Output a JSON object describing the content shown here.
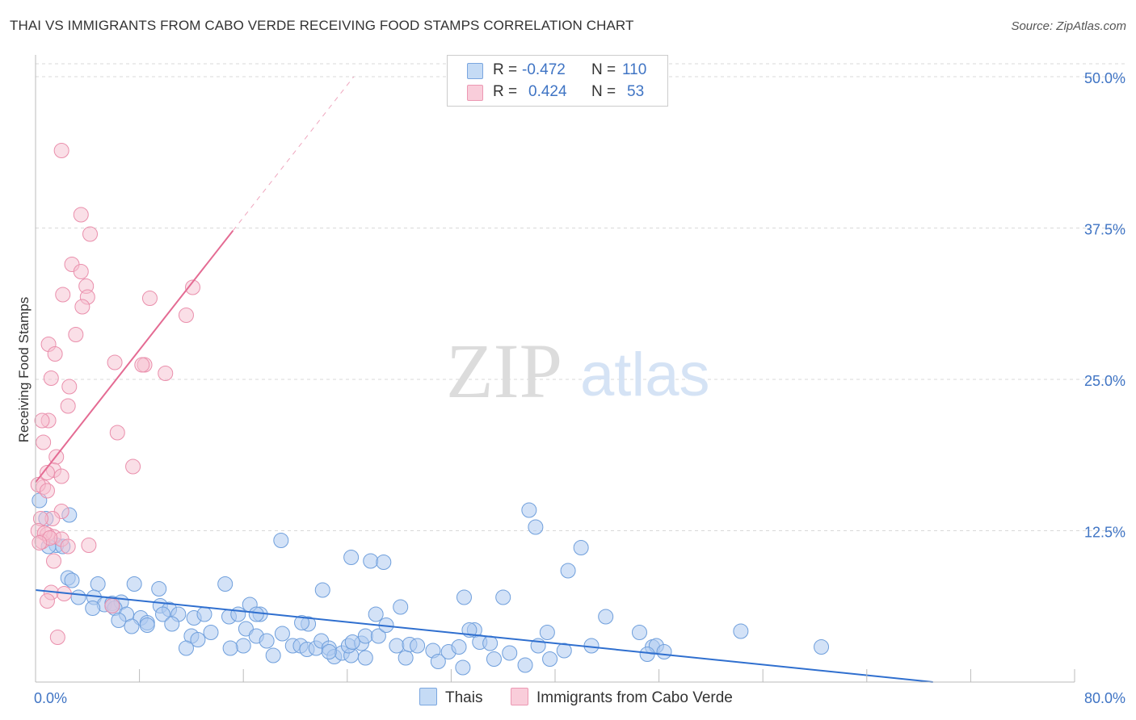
{
  "title": "THAI VS IMMIGRANTS FROM CABO VERDE RECEIVING FOOD STAMPS CORRELATION CHART",
  "source": "Source: ZipAtlas.com",
  "watermark": {
    "zip": "ZIP",
    "atlas": "atlas"
  },
  "legend": {
    "r_label": "R =",
    "n_label": "N =",
    "series1": {
      "r": "-0.472",
      "n": "110"
    },
    "series2": {
      "r": "0.424",
      "n": "53"
    }
  },
  "colors": {
    "blue_fill": "#aecbf0",
    "blue_stroke": "#6f9fdc",
    "blue_line": "#2f6fcf",
    "pink_fill": "#f6bfd0",
    "pink_stroke": "#ea8fac",
    "pink_line": "#e46b93",
    "grid": "#d9d9d9",
    "tick_text": "#3f74c4"
  },
  "chart_data": {
    "type": "scatter",
    "title": "THAI VS IMMIGRANTS FROM CABO VERDE RECEIVING FOOD STAMPS CORRELATION CHART",
    "xlabel": "",
    "ylabel": "Receiving Food Stamps",
    "xlim": [
      0,
      80
    ],
    "ylim": [
      0,
      50
    ],
    "x_tick_labels": [
      "0.0%",
      "80.0%"
    ],
    "y_tick_labels": [
      "12.5%",
      "25.0%",
      "37.5%",
      "50.0%"
    ],
    "y_tick_values": [
      12.5,
      25.0,
      37.5,
      50.0
    ],
    "grid": true,
    "series": [
      {
        "name": "Thais",
        "r": -0.472,
        "n": 110,
        "trend": {
          "x": [
            0,
            80
          ],
          "y": [
            7.6,
            -1.2
          ]
        },
        "points": [
          [
            0.3,
            15.0
          ],
          [
            2.6,
            13.8
          ],
          [
            0.8,
            13.5
          ],
          [
            1.6,
            11.3
          ],
          [
            1.0,
            11.2
          ],
          [
            2.1,
            11.2
          ],
          [
            2.5,
            8.6
          ],
          [
            2.8,
            8.4
          ],
          [
            4.8,
            8.1
          ],
          [
            3.3,
            7.0
          ],
          [
            4.5,
            7.0
          ],
          [
            5.3,
            6.4
          ],
          [
            5.9,
            6.5
          ],
          [
            6.6,
            6.6
          ],
          [
            4.4,
            6.1
          ],
          [
            6.1,
            6.1
          ],
          [
            7.0,
            5.6
          ],
          [
            6.4,
            5.1
          ],
          [
            8.1,
            5.3
          ],
          [
            8.6,
            4.9
          ],
          [
            7.4,
            4.6
          ],
          [
            8.6,
            4.7
          ],
          [
            9.6,
            6.3
          ],
          [
            10.3,
            6.0
          ],
          [
            9.8,
            5.6
          ],
          [
            11.0,
            5.6
          ],
          [
            10.5,
            4.8
          ],
          [
            12.2,
            5.3
          ],
          [
            13.0,
            5.6
          ],
          [
            12.0,
            3.8
          ],
          [
            13.5,
            4.1
          ],
          [
            12.5,
            3.5
          ],
          [
            11.6,
            2.8
          ],
          [
            14.9,
            5.4
          ],
          [
            15.6,
            5.6
          ],
          [
            16.5,
            6.4
          ],
          [
            17.3,
            5.6
          ],
          [
            17.0,
            5.6
          ],
          [
            16.2,
            4.4
          ],
          [
            17.0,
            3.8
          ],
          [
            17.8,
            3.4
          ],
          [
            18.3,
            2.2
          ],
          [
            16.0,
            3.0
          ],
          [
            15.0,
            2.8
          ],
          [
            19.0,
            4.0
          ],
          [
            19.8,
            3.0
          ],
          [
            20.4,
            3.0
          ],
          [
            20.9,
            2.7
          ],
          [
            21.6,
            2.8
          ],
          [
            22.0,
            3.4
          ],
          [
            21.0,
            4.8
          ],
          [
            20.5,
            4.9
          ],
          [
            22.6,
            2.8
          ],
          [
            23.0,
            2.1
          ],
          [
            23.6,
            2.4
          ],
          [
            24.3,
            2.2
          ],
          [
            24.1,
            3.0
          ],
          [
            25.1,
            3.2
          ],
          [
            25.4,
            3.8
          ],
          [
            26.4,
            3.8
          ],
          [
            25.4,
            2.0
          ],
          [
            27.0,
            4.7
          ],
          [
            26.2,
            5.6
          ],
          [
            27.8,
            3.0
          ],
          [
            28.5,
            2.0
          ],
          [
            28.8,
            3.1
          ],
          [
            29.4,
            3.0
          ],
          [
            30.6,
            2.6
          ],
          [
            31.0,
            1.7
          ],
          [
            31.8,
            2.5
          ],
          [
            32.6,
            2.9
          ],
          [
            32.9,
            1.2
          ],
          [
            33.8,
            4.3
          ],
          [
            34.2,
            3.3
          ],
          [
            35.0,
            3.2
          ],
          [
            35.3,
            1.9
          ],
          [
            36.5,
            2.4
          ],
          [
            37.7,
            1.4
          ],
          [
            38.7,
            3.0
          ],
          [
            39.4,
            4.1
          ],
          [
            39.6,
            1.9
          ],
          [
            40.7,
            2.6
          ],
          [
            42.8,
            3.0
          ],
          [
            43.9,
            5.4
          ],
          [
            41.0,
            9.2
          ],
          [
            42.0,
            11.1
          ],
          [
            38.5,
            12.8
          ],
          [
            38.0,
            14.2
          ],
          [
            24.3,
            10.3
          ],
          [
            25.8,
            10.0
          ],
          [
            26.8,
            9.9
          ],
          [
            18.9,
            11.7
          ],
          [
            22.1,
            7.6
          ],
          [
            33.0,
            7.0
          ],
          [
            36.0,
            7.0
          ],
          [
            33.4,
            4.3
          ],
          [
            46.5,
            4.1
          ],
          [
            47.5,
            2.9
          ],
          [
            47.8,
            3.0
          ],
          [
            48.4,
            2.5
          ],
          [
            47.1,
            2.3
          ],
          [
            54.3,
            4.2
          ],
          [
            60.5,
            2.9
          ],
          [
            28.1,
            6.2
          ],
          [
            24.4,
            3.3
          ],
          [
            22.6,
            2.5
          ],
          [
            9.5,
            7.7
          ],
          [
            14.6,
            8.1
          ],
          [
            7.6,
            8.1
          ],
          [
            5.9,
            6.3
          ]
        ]
      },
      {
        "name": "Immigrants from Cabo Verde",
        "r": 0.424,
        "n": 53,
        "trend": {
          "x": [
            0,
            24.5
          ],
          "y": [
            16.5,
            50.0
          ],
          "solid_until_x": 15.2
        },
        "points": [
          [
            2.0,
            43.9
          ],
          [
            3.5,
            38.6
          ],
          [
            4.2,
            37.0
          ],
          [
            2.8,
            34.5
          ],
          [
            3.5,
            33.9
          ],
          [
            3.9,
            32.7
          ],
          [
            4.0,
            31.8
          ],
          [
            3.6,
            31.0
          ],
          [
            2.1,
            32.0
          ],
          [
            8.8,
            31.7
          ],
          [
            12.1,
            32.6
          ],
          [
            11.6,
            30.3
          ],
          [
            3.1,
            28.7
          ],
          [
            1.0,
            27.9
          ],
          [
            1.5,
            27.1
          ],
          [
            6.1,
            26.4
          ],
          [
            8.4,
            26.2
          ],
          [
            8.2,
            26.2
          ],
          [
            10.0,
            25.5
          ],
          [
            1.2,
            25.1
          ],
          [
            2.6,
            24.4
          ],
          [
            2.5,
            22.8
          ],
          [
            1.0,
            21.6
          ],
          [
            0.5,
            21.6
          ],
          [
            6.3,
            20.6
          ],
          [
            0.6,
            19.8
          ],
          [
            1.6,
            18.6
          ],
          [
            7.5,
            17.8
          ],
          [
            1.4,
            17.5
          ],
          [
            0.9,
            17.3
          ],
          [
            2.0,
            17.0
          ],
          [
            0.6,
            16.1
          ],
          [
            0.2,
            16.3
          ],
          [
            0.9,
            15.8
          ],
          [
            2.0,
            14.1
          ],
          [
            1.3,
            13.5
          ],
          [
            0.4,
            13.5
          ],
          [
            0.2,
            12.5
          ],
          [
            0.9,
            12.2
          ],
          [
            1.4,
            12.0
          ],
          [
            2.0,
            11.8
          ],
          [
            0.5,
            11.6
          ],
          [
            2.5,
            11.2
          ],
          [
            4.1,
            11.3
          ],
          [
            1.4,
            10.0
          ],
          [
            1.2,
            7.4
          ],
          [
            2.2,
            7.3
          ],
          [
            0.9,
            6.7
          ],
          [
            5.9,
            6.3
          ],
          [
            1.7,
            3.7
          ],
          [
            0.7,
            12.3
          ],
          [
            1.1,
            11.9
          ],
          [
            0.3,
            11.5
          ]
        ]
      }
    ]
  },
  "bottom_legend": {
    "thais": "Thais",
    "cabo": "Immigrants from Cabo Verde"
  }
}
